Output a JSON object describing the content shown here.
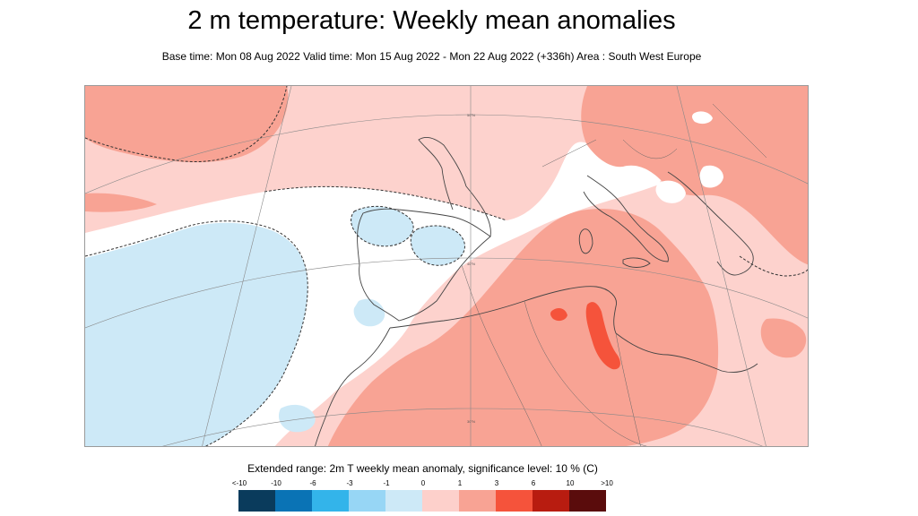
{
  "header": {
    "title": "2 m temperature: Weekly mean anomalies",
    "subtitle": "Base time: Mon 08 Aug 2022 Valid time: Mon 15 Aug 2022 - Mon 22 Aug 2022 (+336h) Area : South West Europe"
  },
  "map": {
    "gridline_labels": [
      "30°N",
      "40°N",
      "50°N"
    ]
  },
  "legend": {
    "title": "Extended range: 2m T weekly mean anomaly, significance level: 10 % (C)",
    "labels": [
      "<-10",
      "-10",
      "-6",
      "-3",
      "-1",
      "0",
      "1",
      "3",
      "6",
      "10",
      ">10"
    ],
    "colors": [
      "#0a3b5c",
      "#0a73b5",
      "#33b4ea",
      "#97d6f5",
      "#cde9f7",
      "#ffffff",
      "#fdd0cb",
      "#f8a394",
      "#f5533b",
      "#b81c10",
      "#5a0c0c"
    ]
  }
}
